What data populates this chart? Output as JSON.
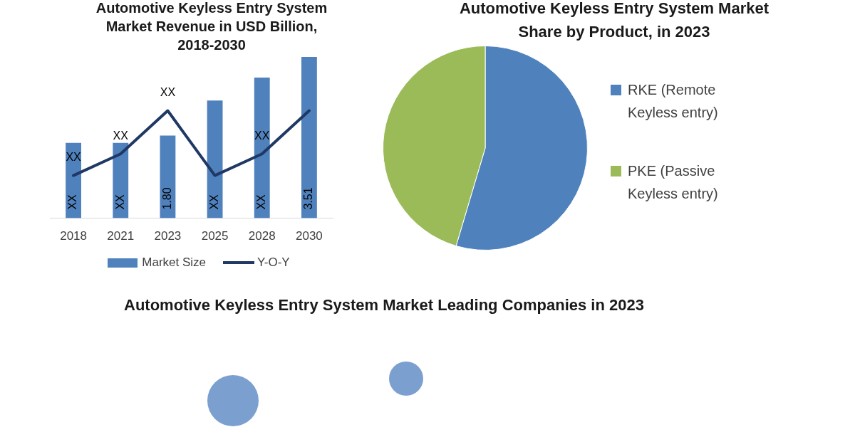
{
  "chart_data": [
    {
      "type": "bar",
      "title": "Automotive Keyless Entry System Market Revenue in USD Billion, 2018-2030",
      "categories": [
        "2018",
        "2021",
        "2023",
        "2025",
        "2028",
        "2030"
      ],
      "series": [
        {
          "name": "Market Size",
          "type": "bar",
          "color": "#4f81bd",
          "values": [
            1.64,
            1.64,
            1.8,
            2.56,
            3.06,
            3.51
          ],
          "value_labels": [
            "XX",
            "XX",
            "1.80",
            "XX",
            "XX",
            "3.51"
          ]
        },
        {
          "name": "Y-O-Y",
          "type": "line",
          "color": "#1f3864",
          "values": [
            0.93,
            1.4,
            2.34,
            0.93,
            1.4,
            2.34
          ],
          "value_labels": [
            "XX",
            "XX",
            "XX",
            null,
            "XX",
            null
          ]
        }
      ],
      "tick_labels": "x",
      "legend": "bottom",
      "marker": "none"
    },
    {
      "type": "pie",
      "title": "Automotive Keyless Entry System Market Share by Product, in 2023",
      "categories": [
        "RKE (Remote Keyless entry)",
        "PKE (Passive Keyless entry)"
      ],
      "values": [
        54.6,
        45.4
      ],
      "colors": [
        "#4f81bd",
        "#9bbb59"
      ],
      "legend": "right"
    },
    {
      "type": "other",
      "title": "Automotive Keyless Entry System Market Leading Companies in 2023"
    }
  ]
}
